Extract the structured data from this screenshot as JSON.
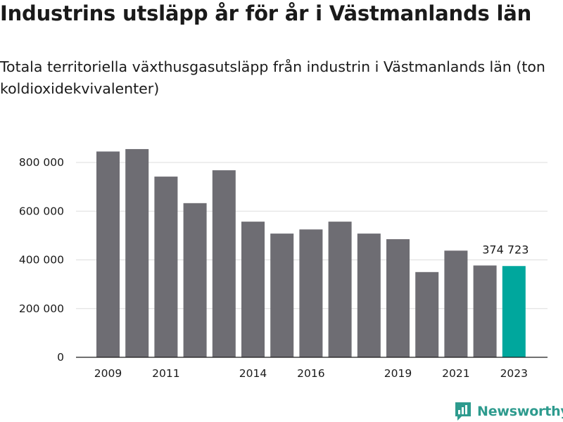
{
  "title": "Industrins utsläpp år för år i Västmanlands län",
  "subtitle": "Totala territoriella växthusgasutsläpp från industrin i Västmanlands län (ton koldioxidekvivalenter)",
  "brand": "Newsworthy",
  "chart_data": {
    "type": "bar",
    "categories": [
      2009,
      2010,
      2011,
      2012,
      2013,
      2014,
      2015,
      2016,
      2017,
      2018,
      2019,
      2020,
      2021,
      2022,
      2023
    ],
    "values": [
      845000,
      855000,
      742000,
      633000,
      768000,
      557000,
      508000,
      525000,
      557000,
      508000,
      485000,
      350000,
      438000,
      377000,
      374723
    ],
    "x_tick_labels": [
      "2009",
      "2011",
      "2014",
      "2016",
      "2019",
      "2021",
      "2023"
    ],
    "y_ticks": [
      0,
      200000,
      400000,
      600000,
      800000
    ],
    "y_tick_labels": [
      "0",
      "200 000",
      "400 000",
      "600 000",
      "800 000"
    ],
    "ylim": [
      0,
      900000
    ],
    "annotation": {
      "index": 14,
      "text": "374 723"
    },
    "grid": true,
    "colors": {
      "bar": "#6e6d73",
      "highlight": "#00a79d",
      "grid": "#dddddd",
      "axis": "#1a1a1a"
    }
  }
}
